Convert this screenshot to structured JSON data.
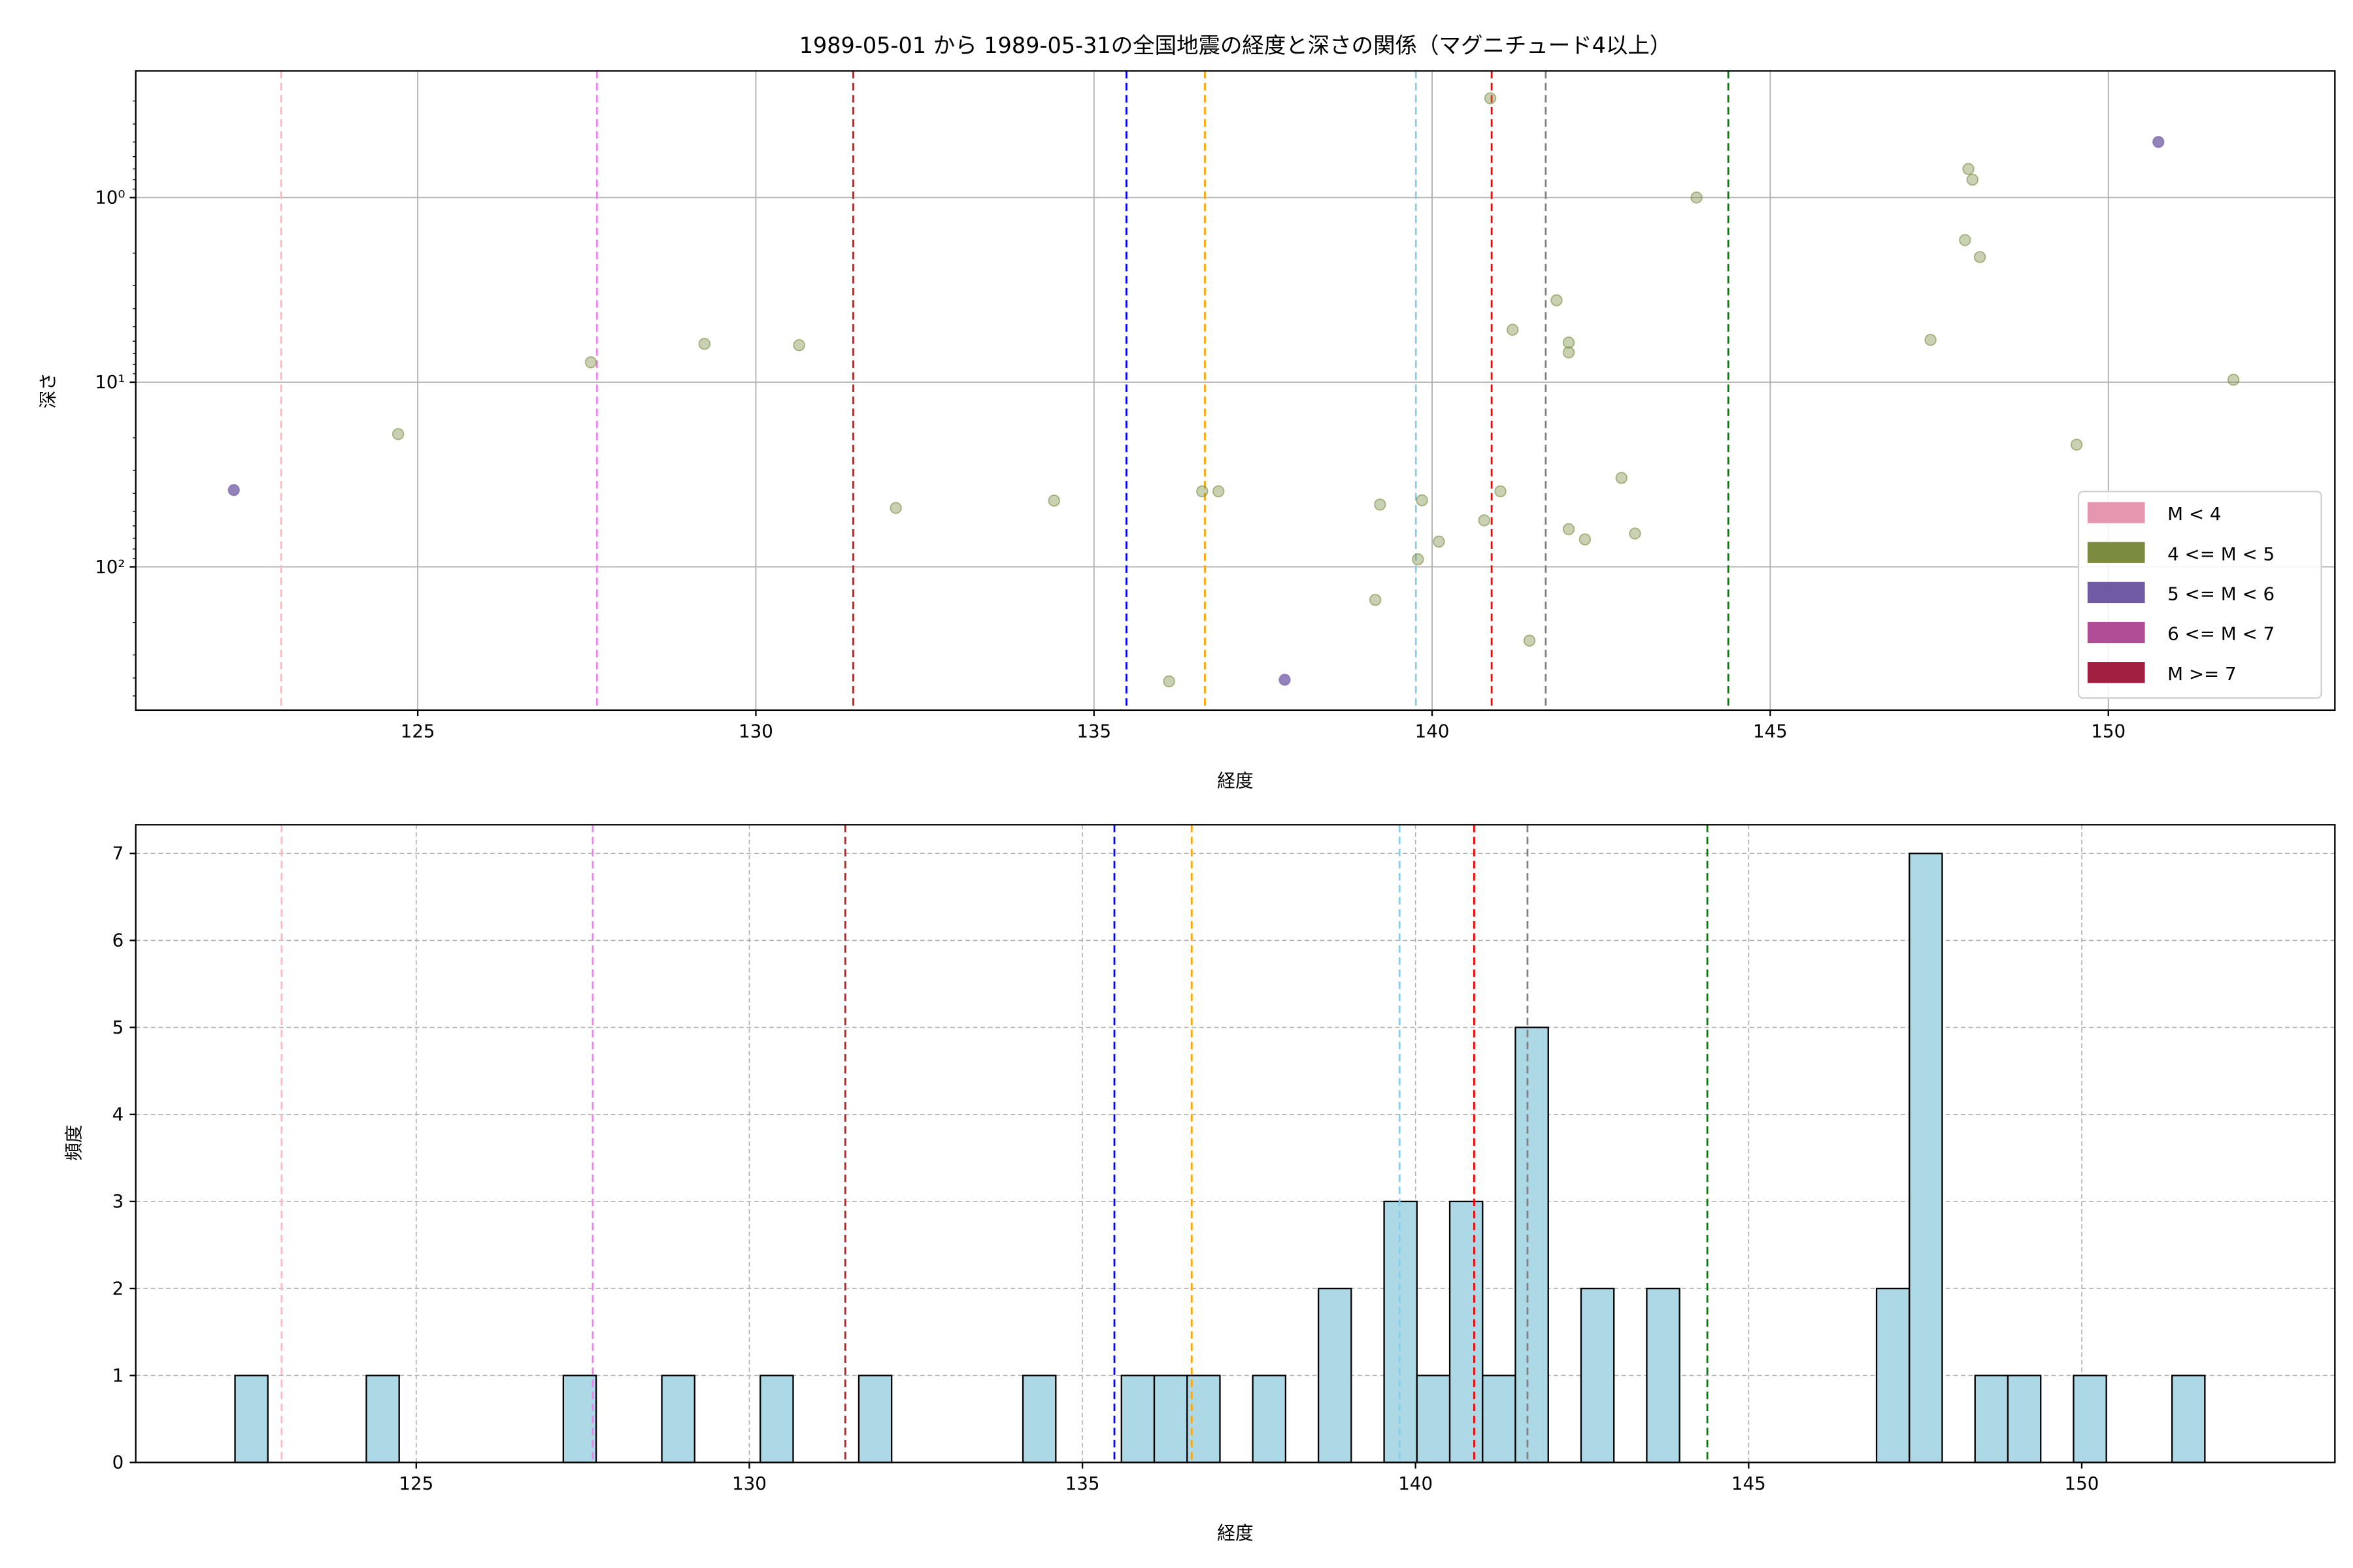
{
  "chart_data": [
    {
      "type": "scatter",
      "title": "1989-05-01 から 1989-05-31の全国地震の経度と深さの関係（マグニチュード4以上）",
      "xlabel": "経度",
      "ylabel": "深さ",
      "xlim": [
        120.83,
        153.35
      ],
      "ylim": [
        597,
        0.206
      ],
      "yscale": "log",
      "yinverted": true,
      "xticks": [
        125,
        130,
        135,
        140,
        145,
        150
      ],
      "yticks": [
        {
          "value": 1,
          "label": "10⁰"
        },
        {
          "value": 10,
          "label": "10¹"
        },
        {
          "value": 100,
          "label": "10²"
        }
      ],
      "grid": true,
      "legend": {
        "placement": "lower-right",
        "entries": [
          {
            "label": "M < 4",
            "color": "#e597b0"
          },
          {
            "label": "4 <= M < 5",
            "color": "#7b8c41"
          },
          {
            "label": "5 <= M < 6",
            "color": "#6f5aa3"
          },
          {
            "label": "6 <= M < 7",
            "color": "#b04d96"
          },
          {
            "label": "M >= 7",
            "color": "#a21f42"
          }
        ]
      },
      "points": [
        {
          "lon": 122.28,
          "depth": 38.4,
          "class": 2
        },
        {
          "lon": 124.71,
          "depth": 19.1,
          "class": 1
        },
        {
          "lon": 127.56,
          "depth": 7.8,
          "class": 1
        },
        {
          "lon": 129.24,
          "depth": 6.2,
          "class": 1
        },
        {
          "lon": 130.64,
          "depth": 6.3,
          "class": 1
        },
        {
          "lon": 132.07,
          "depth": 48,
          "class": 1
        },
        {
          "lon": 134.41,
          "depth": 43.8,
          "class": 1
        },
        {
          "lon": 136.11,
          "depth": 417,
          "class": 1
        },
        {
          "lon": 136.6,
          "depth": 39,
          "class": 1
        },
        {
          "lon": 136.84,
          "depth": 39,
          "class": 1
        },
        {
          "lon": 137.82,
          "depth": 409,
          "class": 2
        },
        {
          "lon": 139.16,
          "depth": 151,
          "class": 1
        },
        {
          "lon": 139.23,
          "depth": 46,
          "class": 1
        },
        {
          "lon": 139.79,
          "depth": 91,
          "class": 1
        },
        {
          "lon": 139.85,
          "depth": 43.6,
          "class": 1
        },
        {
          "lon": 140.1,
          "depth": 73,
          "class": 1
        },
        {
          "lon": 140.77,
          "depth": 56,
          "class": 1
        },
        {
          "lon": 140.86,
          "depth": 0.29,
          "class": 1
        },
        {
          "lon": 141.01,
          "depth": 39,
          "class": 1
        },
        {
          "lon": 141.19,
          "depth": 5.2,
          "class": 1
        },
        {
          "lon": 141.44,
          "depth": 251,
          "class": 1
        },
        {
          "lon": 141.84,
          "depth": 3.6,
          "class": 1
        },
        {
          "lon": 142.02,
          "depth": 6.1,
          "class": 1
        },
        {
          "lon": 142.02,
          "depth": 6.9,
          "class": 1
        },
        {
          "lon": 142.02,
          "depth": 62.5,
          "class": 1
        },
        {
          "lon": 142.26,
          "depth": 71,
          "class": 1
        },
        {
          "lon": 142.8,
          "depth": 33,
          "class": 1
        },
        {
          "lon": 143.0,
          "depth": 66,
          "class": 1
        },
        {
          "lon": 143.91,
          "depth": 1.0,
          "class": 1
        },
        {
          "lon": 147.37,
          "depth": 5.9,
          "class": 1
        },
        {
          "lon": 147.88,
          "depth": 1.7,
          "class": 1
        },
        {
          "lon": 147.93,
          "depth": 0.7,
          "class": 1
        },
        {
          "lon": 147.99,
          "depth": 0.8,
          "class": 1
        },
        {
          "lon": 148.1,
          "depth": 2.1,
          "class": 1
        },
        {
          "lon": 149.53,
          "depth": 21.8,
          "class": 1
        },
        {
          "lon": 150.74,
          "depth": 0.5,
          "class": 2
        },
        {
          "lon": 151.85,
          "depth": 9.7,
          "class": 1
        }
      ],
      "reference_lines": [
        {
          "lon": 122.98,
          "color": "#ffb6c1"
        },
        {
          "lon": 127.65,
          "color": "#ee82ee"
        },
        {
          "lon": 131.44,
          "color": "#a52a2a"
        },
        {
          "lon": 135.48,
          "color": "#0000ff"
        },
        {
          "lon": 136.64,
          "color": "#ffa500"
        },
        {
          "lon": 139.76,
          "color": "#87ceeb"
        },
        {
          "lon": 140.88,
          "color": "#ff0000"
        },
        {
          "lon": 141.68,
          "color": "#808080"
        },
        {
          "lon": 144.38,
          "color": "#008000"
        }
      ]
    },
    {
      "type": "bar",
      "subtype": "histogram",
      "xlabel": "経度",
      "ylabel": "頻度",
      "xlim": [
        120.79,
        153.8
      ],
      "ylim": [
        0,
        7.33
      ],
      "xticks": [
        125,
        130,
        135,
        140,
        145,
        150
      ],
      "yticks": [
        0,
        1,
        2,
        3,
        4,
        5,
        6,
        7
      ],
      "grid": true,
      "bar_color": "#add8e6",
      "bin_start": 122.28,
      "bin_width": 0.4928,
      "bins": [
        {
          "index": 0,
          "count": 1
        },
        {
          "index": 4,
          "count": 1
        },
        {
          "index": 10,
          "count": 1
        },
        {
          "index": 13,
          "count": 1
        },
        {
          "index": 16,
          "count": 1
        },
        {
          "index": 19,
          "count": 1
        },
        {
          "index": 24,
          "count": 1
        },
        {
          "index": 27,
          "count": 1
        },
        {
          "index": 28,
          "count": 1
        },
        {
          "index": 29,
          "count": 1
        },
        {
          "index": 31,
          "count": 1
        },
        {
          "index": 33,
          "count": 2
        },
        {
          "index": 35,
          "count": 3
        },
        {
          "index": 36,
          "count": 1
        },
        {
          "index": 37,
          "count": 3
        },
        {
          "index": 38,
          "count": 1
        },
        {
          "index": 39,
          "count": 5
        },
        {
          "index": 41,
          "count": 2
        },
        {
          "index": 43,
          "count": 2
        },
        {
          "index": 50,
          "count": 2
        },
        {
          "index": 51,
          "count": 7
        },
        {
          "index": 53,
          "count": 1
        },
        {
          "index": 54,
          "count": 1
        },
        {
          "index": 56,
          "count": 1
        },
        {
          "index": 59,
          "count": 1
        }
      ],
      "reference_lines": [
        {
          "lon": 122.98,
          "color": "#ffb6c1"
        },
        {
          "lon": 127.65,
          "color": "#ee82ee"
        },
        {
          "lon": 131.44,
          "color": "#a52a2a"
        },
        {
          "lon": 135.48,
          "color": "#0000ff"
        },
        {
          "lon": 136.64,
          "color": "#ffa500"
        },
        {
          "lon": 139.76,
          "color": "#87ceeb"
        },
        {
          "lon": 140.88,
          "color": "#ff0000"
        },
        {
          "lon": 141.68,
          "color": "#808080"
        },
        {
          "lon": 144.38,
          "color": "#008000"
        }
      ]
    }
  ]
}
